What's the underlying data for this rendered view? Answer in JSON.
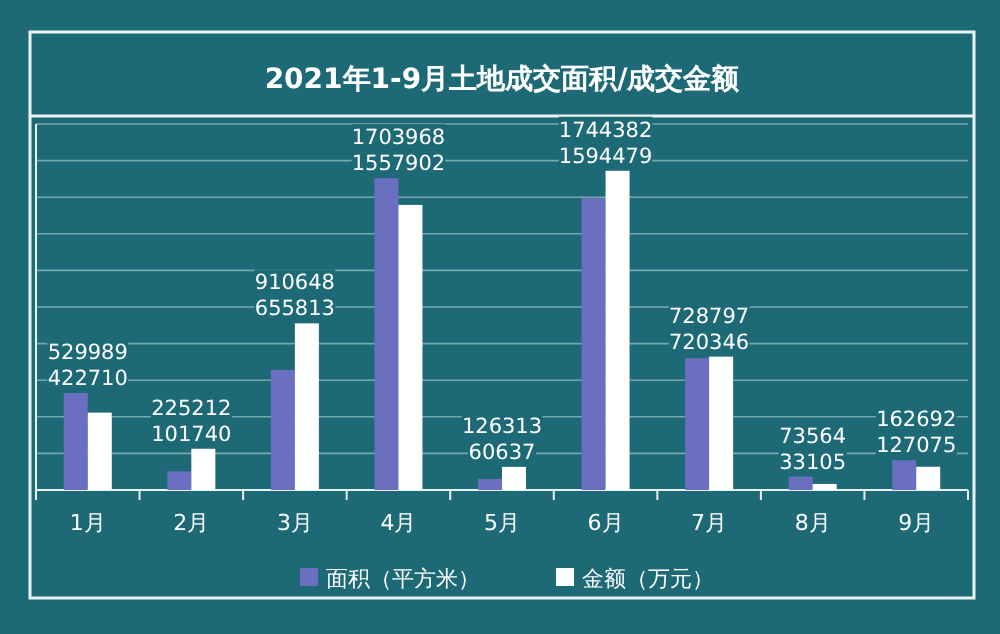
{
  "chart_data": {
    "type": "bar",
    "title": "2021年1-9月土地成交面积/成交金额",
    "categories": [
      "1月",
      "2月",
      "3月",
      "4月",
      "5月",
      "6月",
      "7月",
      "8月",
      "9月"
    ],
    "series": [
      {
        "name": "面积（平方米）",
        "color": "#6a6fc0",
        "values": [
          529989,
          101740,
          655813,
          1703968,
          60637,
          1594479,
          720346,
          73564,
          162692
        ]
      },
      {
        "name": "金额（万元）",
        "color": "#ffffff",
        "values": [
          422710,
          225212,
          910648,
          1557902,
          126313,
          1744382,
          728797,
          33105,
          127075
        ]
      }
    ],
    "ylim": [
      0,
      2000000
    ],
    "yticks": [
      {
        "value": 0,
        "label": null
      },
      {
        "value": 200000,
        "label": null
      },
      {
        "value": 400000,
        "label": null
      },
      {
        "value": 600000,
        "label": null
      },
      {
        "value": 800000,
        "label": null
      },
      {
        "value": 1000000,
        "label": null
      },
      {
        "value": 1200000,
        "label": null
      },
      {
        "value": 1400000,
        "label": null
      },
      {
        "value": 1600000,
        "label": null
      },
      {
        "value": 1800000,
        "label": null
      },
      {
        "value": 2000000,
        "label": null
      }
    ],
    "grid": "y",
    "data_labels": true,
    "legend": "bottom",
    "tick_labels": "x"
  }
}
